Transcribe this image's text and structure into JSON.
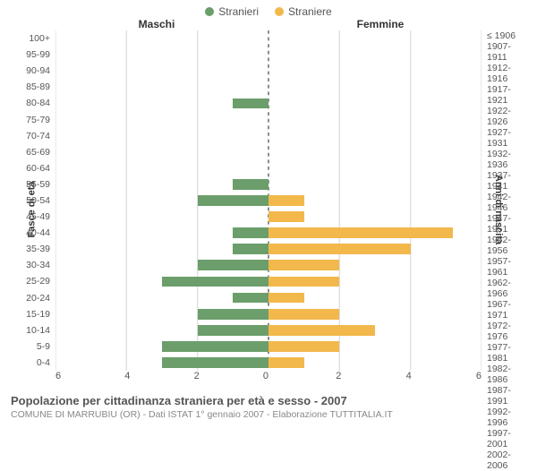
{
  "legend": {
    "male": {
      "label": "Stranieri",
      "color": "#6b9e6b"
    },
    "female": {
      "label": "Straniere",
      "color": "#f2b84b"
    }
  },
  "headers": {
    "left": "Maschi",
    "right": "Femmine"
  },
  "axis_titles": {
    "left": "Fasce di età",
    "right": "Anni di nascita"
  },
  "chart": {
    "type": "population-pyramid",
    "xmax": 6,
    "xticks": [
      0,
      2,
      4,
      6
    ],
    "bar_width": 0.65,
    "grid_color": "#e0e0e0",
    "zero_line_color": "#888888",
    "background_color": "#ffffff",
    "male_color": "#6b9e6b",
    "female_color": "#f2b84b",
    "label_fontsize": 10.5,
    "tick_fontsize": 11,
    "rows": [
      {
        "age": "100+",
        "birth": "≤ 1906",
        "m": 0,
        "f": 0
      },
      {
        "age": "95-99",
        "birth": "1907-1911",
        "m": 0,
        "f": 0
      },
      {
        "age": "90-94",
        "birth": "1912-1916",
        "m": 0,
        "f": 0
      },
      {
        "age": "85-89",
        "birth": "1917-1921",
        "m": 0,
        "f": 0
      },
      {
        "age": "80-84",
        "birth": "1922-1926",
        "m": 1,
        "f": 0
      },
      {
        "age": "75-79",
        "birth": "1927-1931",
        "m": 0,
        "f": 0
      },
      {
        "age": "70-74",
        "birth": "1932-1936",
        "m": 0,
        "f": 0
      },
      {
        "age": "65-69",
        "birth": "1937-1941",
        "m": 0,
        "f": 0
      },
      {
        "age": "60-64",
        "birth": "1942-1946",
        "m": 0,
        "f": 0
      },
      {
        "age": "55-59",
        "birth": "1947-1951",
        "m": 1,
        "f": 0
      },
      {
        "age": "50-54",
        "birth": "1952-1956",
        "m": 2,
        "f": 1
      },
      {
        "age": "45-49",
        "birth": "1957-1961",
        "m": 0,
        "f": 1
      },
      {
        "age": "40-44",
        "birth": "1962-1966",
        "m": 1,
        "f": 5.2
      },
      {
        "age": "35-39",
        "birth": "1967-1971",
        "m": 1,
        "f": 4
      },
      {
        "age": "30-34",
        "birth": "1972-1976",
        "m": 2,
        "f": 2
      },
      {
        "age": "25-29",
        "birth": "1977-1981",
        "m": 3,
        "f": 2
      },
      {
        "age": "20-24",
        "birth": "1982-1986",
        "m": 1,
        "f": 1
      },
      {
        "age": "15-19",
        "birth": "1987-1991",
        "m": 2,
        "f": 2
      },
      {
        "age": "10-14",
        "birth": "1992-1996",
        "m": 2,
        "f": 3
      },
      {
        "age": "5-9",
        "birth": "1997-2001",
        "m": 3,
        "f": 2
      },
      {
        "age": "0-4",
        "birth": "2002-2006",
        "m": 3,
        "f": 1
      }
    ]
  },
  "footer": {
    "title": "Popolazione per cittadinanza straniera per età e sesso - 2007",
    "subtitle": "COMUNE DI MARRUBIU (OR) - Dati ISTAT 1° gennaio 2007 - Elaborazione TUTTITALIA.IT"
  }
}
